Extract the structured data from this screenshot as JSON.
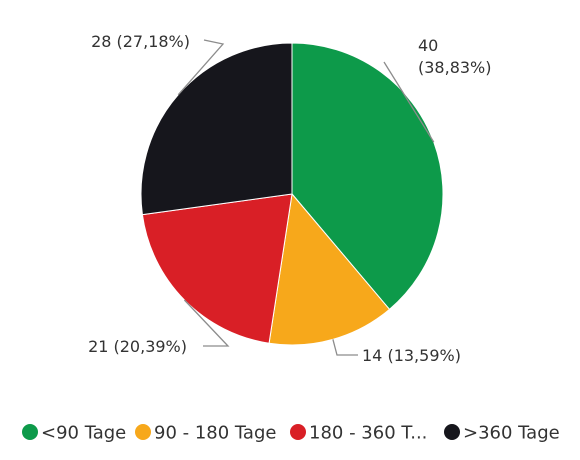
{
  "chart_data": {
    "type": "pie",
    "title": "",
    "start_angle_deg": 0,
    "direction": "clockwise",
    "legend_position": "bottom",
    "slices": [
      {
        "label": "<90 Tage",
        "legend_label": "<90 Tage",
        "value": 40,
        "percent": 38.83,
        "color": "#0d9a4a",
        "data_label_lines": [
          "40",
          "(38,83%)"
        ]
      },
      {
        "label": "90 - 180 Tage",
        "legend_label": "90 - 180 Tage",
        "value": 14,
        "percent": 13.59,
        "color": "#f7a81b",
        "data_label_lines": [
          "14 (13,59%)"
        ]
      },
      {
        "label": "180 - 360 Tage",
        "legend_label": "180 - 360 T...",
        "value": 21,
        "percent": 20.39,
        "color": "#d91f26",
        "data_label_lines": [
          "21 (20,39%)"
        ]
      },
      {
        "label": ">360 Tage",
        "legend_label": ">360 Tage",
        "value": 28,
        "percent": 27.18,
        "color": "#16161c",
        "data_label_lines": [
          "28 (27,18%)"
        ]
      }
    ]
  }
}
